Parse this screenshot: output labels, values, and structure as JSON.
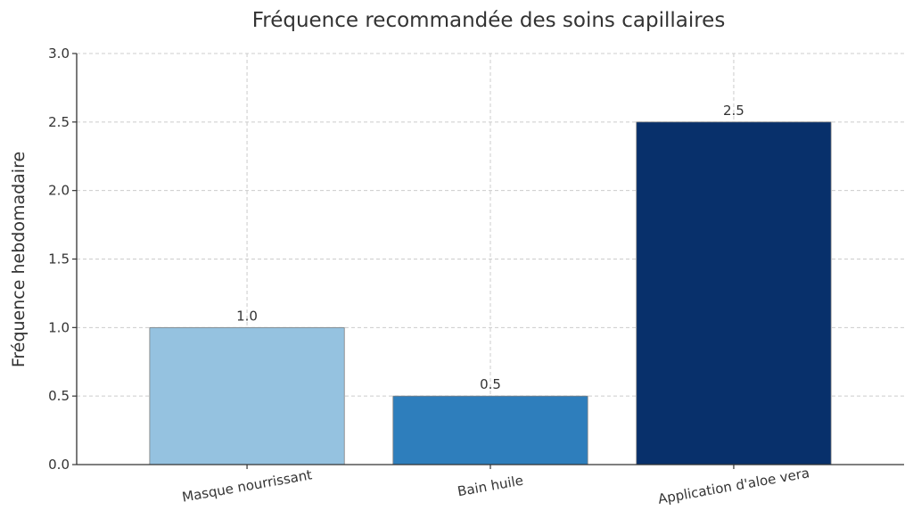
{
  "chart_data": {
    "type": "bar",
    "title": "Fréquence recommandée des soins capillaires",
    "xlabel": "",
    "ylabel": "Fréquence hebdomadaire",
    "categories": [
      "Masque nourrissant",
      "Bain huile",
      "Application d'aloe vera"
    ],
    "values": [
      1.0,
      0.5,
      2.5
    ],
    "value_labels": [
      "1.0",
      "0.5",
      "2.5"
    ],
    "colors": [
      "#95c2e0",
      "#2e7ebc",
      "#08306b"
    ],
    "ylim": [
      0,
      3.0
    ],
    "yticks": [
      0,
      0.5,
      1.0,
      1.5,
      2.0,
      2.5,
      3.0
    ],
    "ytick_labels": [
      "0.0",
      "0.5",
      "1.0",
      "1.5",
      "2.0",
      "2.5",
      "3.0"
    ],
    "grid": true,
    "xtick_rotation_deg": -10
  }
}
